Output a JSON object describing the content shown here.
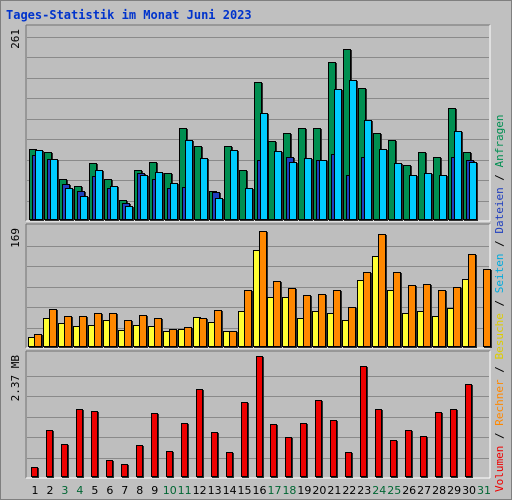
{
  "title": "Tages-Statistik im Monat Juni 2023",
  "colors": {
    "background": "#c0c0c0",
    "plot_bg": "#bebebe",
    "title": "#0033cc",
    "weekend_day": "#006633",
    "hits": "#008f51",
    "files": "#1f3fbf",
    "pages": "#00ccff",
    "visits": "#ffff33",
    "sites": "#ff8800",
    "kbytes": "#ee0000",
    "separator": "#000000"
  },
  "right_legend": [
    {
      "text": "Volumen",
      "color": "#ee0000"
    },
    {
      "text": " / ",
      "color": "#000000"
    },
    {
      "text": "Rechner",
      "color": "#ff8800"
    },
    {
      "text": " / ",
      "color": "#000000"
    },
    {
      "text": "Besuche",
      "color": "#ddcc00"
    },
    {
      "text": " / ",
      "color": "#000000"
    },
    {
      "text": "Seiten",
      "color": "#00aadd"
    },
    {
      "text": " / ",
      "color": "#000000"
    },
    {
      "text": "Dateien",
      "color": "#1f3fbf"
    },
    {
      "text": " / ",
      "color": "#000000"
    },
    {
      "text": "Anfragen",
      "color": "#008f51"
    }
  ],
  "chart_data": [
    {
      "type": "bar",
      "title": "Tages-Statistik im Monat Juni 2023",
      "ymax_label": "261",
      "ylim": [
        0,
        261
      ],
      "categories": [
        "1",
        "2",
        "3",
        "4",
        "5",
        "6",
        "7",
        "8",
        "9",
        "10",
        "11",
        "12",
        "13",
        "14",
        "15",
        "16",
        "17",
        "18",
        "19",
        "20",
        "21",
        "22",
        "23",
        "24",
        "25",
        "26",
        "27",
        "28",
        "29",
        "30",
        "31"
      ],
      "weekend_days": [
        "3",
        "4",
        "10",
        "11",
        "17",
        "18",
        "24",
        "25",
        "31"
      ],
      "series": [
        {
          "name": "Anfragen",
          "color": "#008f51",
          "values": [
            98,
            94,
            57,
            47,
            78,
            57,
            27,
            69,
            80,
            64,
            127,
            101,
            40,
            101,
            69,
            189,
            108,
            120,
            127,
            127,
            217,
            235,
            182,
            120,
            110,
            76,
            94,
            87,
            154,
            94,
            0
          ]
        },
        {
          "name": "Dateien",
          "color": "#1f3fbf",
          "values": [
            89,
            84,
            50,
            40,
            60,
            44,
            24,
            64,
            57,
            44,
            46,
            0,
            38,
            0,
            0,
            83,
            0,
            87,
            0,
            82,
            91,
            62,
            87,
            0,
            0,
            0,
            0,
            0,
            87,
            82,
            0
          ]
        },
        {
          "name": "Seiten",
          "color": "#00ccff",
          "values": [
            96,
            84,
            44,
            33,
            69,
            47,
            19,
            62,
            66,
            51,
            110,
            85,
            30,
            96,
            44,
            147,
            95,
            80,
            85,
            82,
            180,
            192,
            138,
            97,
            78,
            62,
            65,
            62,
            122,
            80,
            0
          ]
        }
      ]
    },
    {
      "type": "bar",
      "ymax_label": "169",
      "ylim": [
        0,
        169
      ],
      "categories": [
        "1",
        "2",
        "3",
        "4",
        "5",
        "6",
        "7",
        "8",
        "9",
        "10",
        "11",
        "12",
        "13",
        "14",
        "15",
        "16",
        "17",
        "18",
        "19",
        "20",
        "21",
        "22",
        "23",
        "24",
        "25",
        "26",
        "27",
        "28",
        "29",
        "30",
        "31"
      ],
      "series": [
        {
          "name": "Besuche",
          "color": "#ffff33",
          "values": [
            14,
            42,
            34,
            30,
            31,
            39,
            24,
            32,
            30,
            23,
            26,
            43,
            36,
            23,
            51,
            139,
            71,
            72,
            42,
            51,
            49,
            38,
            96,
            131,
            81,
            49,
            52,
            45,
            56,
            97,
            0
          ]
        },
        {
          "name": "Rechner",
          "color": "#ff8800",
          "values": [
            18,
            54,
            45,
            45,
            48,
            48,
            38,
            46,
            42,
            26,
            29,
            41,
            53,
            23,
            82,
            166,
            95,
            84,
            75,
            76,
            82,
            57,
            108,
            162,
            108,
            89,
            90,
            82,
            86,
            133,
            112
          ]
        }
      ]
    },
    {
      "type": "bar",
      "ymax_label": "2.37 MB",
      "ylim": [
        0,
        2.37
      ],
      "categories": [
        "1",
        "2",
        "3",
        "4",
        "5",
        "6",
        "7",
        "8",
        "9",
        "10",
        "11",
        "12",
        "13",
        "14",
        "15",
        "16",
        "17",
        "18",
        "19",
        "20",
        "21",
        "22",
        "23",
        "24",
        "25",
        "26",
        "27",
        "28",
        "29",
        "30",
        "31"
      ],
      "series": [
        {
          "name": "Volumen",
          "color": "#ee0000",
          "values": [
            0.2,
            0.93,
            0.64,
            1.33,
            1.3,
            0.33,
            0.25,
            0.63,
            1.26,
            0.51,
            1.06,
            1.72,
            0.88,
            0.48,
            1.46,
            2.37,
            1.03,
            0.79,
            1.06,
            1.5,
            1.11,
            0.49,
            2.18,
            1.33,
            0.72,
            0.93,
            0.8,
            1.27,
            1.34,
            1.83,
            0
          ]
        }
      ]
    }
  ]
}
